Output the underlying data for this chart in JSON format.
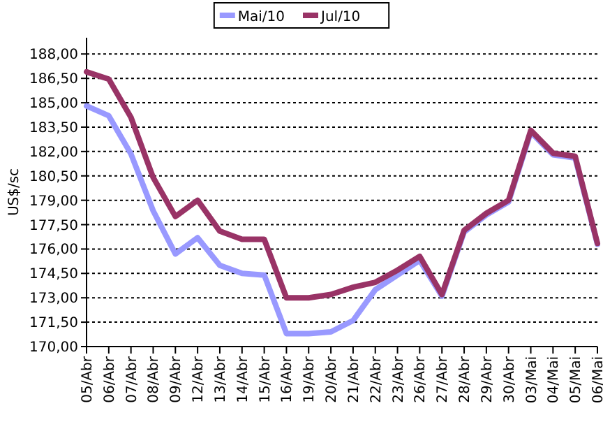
{
  "chart_data": {
    "type": "line",
    "ylabel": "US$/sc",
    "categories": [
      "05/Abr",
      "06/Abr",
      "07/Abr",
      "08/Abr",
      "09/Abr",
      "12/Abr",
      "13/Abr",
      "14/Abr",
      "15/Abr",
      "16/Abr",
      "19/Abr",
      "20/Abr",
      "21/Abr",
      "22/Abr",
      "23/Abr",
      "26/Abr",
      "27/Abr",
      "28/Abr",
      "29/Abr",
      "30/Abr",
      "03/Mai",
      "04/Mai",
      "05/Mai",
      "06/Mai"
    ],
    "series": [
      {
        "name": "Mai/10",
        "color": "#9999ff",
        "values": [
          184.8,
          184.2,
          181.85,
          178.35,
          175.7,
          176.7,
          175.0,
          174.5,
          174.4,
          170.8,
          170.8,
          170.9,
          171.6,
          173.5,
          174.4,
          175.3,
          173.1,
          177.05,
          178.1,
          178.9,
          183.2,
          181.8,
          181.6,
          176.3
        ]
      },
      {
        "name": "Jul/10",
        "color": "#993366",
        "values": [
          186.9,
          186.45,
          184.1,
          180.4,
          178.0,
          179.0,
          177.1,
          176.6,
          176.6,
          173.0,
          173.0,
          173.2,
          173.65,
          173.95,
          174.7,
          175.55,
          173.2,
          177.15,
          178.2,
          179.0,
          183.3,
          181.9,
          181.7,
          176.35
        ]
      }
    ],
    "ylim": [
      170,
      189
    ],
    "yticks": [
      {
        "value": 170,
        "label": "170,00"
      },
      {
        "value": 171.5,
        "label": "171,50"
      },
      {
        "value": 173,
        "label": "173,00"
      },
      {
        "value": 174.5,
        "label": "174,50"
      },
      {
        "value": 176,
        "label": "176,00"
      },
      {
        "value": 177.5,
        "label": "177,50"
      },
      {
        "value": 179,
        "label": "179,00"
      },
      {
        "value": 180.5,
        "label": "180,50"
      },
      {
        "value": 182,
        "label": "182,00"
      },
      {
        "value": 183.5,
        "label": "183,50"
      },
      {
        "value": 185,
        "label": "185,00"
      },
      {
        "value": 186.5,
        "label": "186,50"
      },
      {
        "value": 188,
        "label": "188,00"
      }
    ],
    "grid": "y",
    "legend": "top",
    "marker": "none",
    "line_style": "solid"
  }
}
